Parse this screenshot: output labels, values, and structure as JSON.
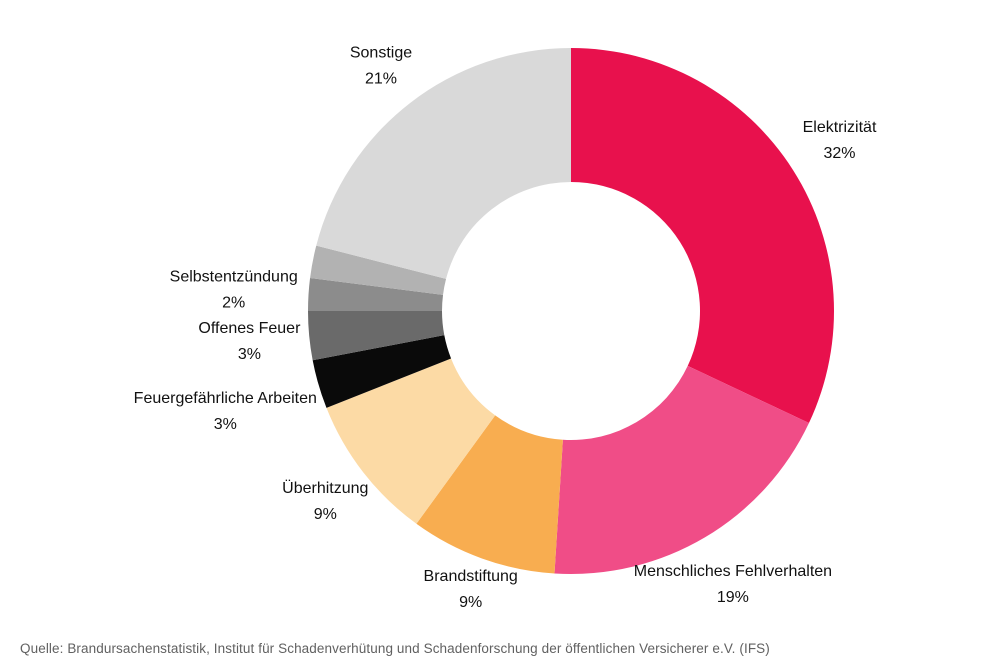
{
  "chart_data": {
    "type": "pie",
    "variant": "donut",
    "title": "",
    "unit": "%",
    "direction": "clockwise",
    "start_angle_deg": 0,
    "donut_hole_ratio": 0.49,
    "legend": "none",
    "labels_outside": true,
    "slices": [
      {
        "id": "elektrizitaet",
        "label": "Elektrizität",
        "value": 32,
        "pct_label": "32%",
        "color": "#E8114D",
        "show_label": true,
        "label_radius": 318
      },
      {
        "id": "menschliches-fehlverhalten",
        "label": "Menschliches Fehlverhalten",
        "value": 19,
        "pct_label": "19%",
        "color": "#F04D87",
        "show_label": true,
        "label_radius": 318
      },
      {
        "id": "brandstiftung",
        "label": "Brandstiftung",
        "value": 9,
        "pct_label": "9%",
        "color": "#F8AD50",
        "show_label": true,
        "label_radius": 296
      },
      {
        "id": "ueberhitzung",
        "label": "Überhitzung",
        "value": 9,
        "pct_label": "9%",
        "color": "#FCDAA5",
        "show_label": true,
        "label_radius": 311
      },
      {
        "id": "feuergefaehrliche-arbeiten",
        "label": "Feuergefährliche Arbeiten",
        "value": 3,
        "pct_label": "3%",
        "color": "#0A0A0A",
        "show_label": true,
        "label_radius": 360
      },
      {
        "id": "offenes-feuer",
        "label": "Offenes Feuer",
        "value": 3,
        "pct_label": "3%",
        "color": "#6A6A6A",
        "show_label": true,
        "label_radius": 323
      },
      {
        "id": "selbstentzuendung",
        "label": "Selbstentzündung",
        "value": 2,
        "pct_label": "2%",
        "color": "#8C8C8C",
        "show_label": true,
        "label_radius": 338
      },
      {
        "id": "unlabeled-gray",
        "label": "",
        "value": 2,
        "pct_label": "",
        "color": "#B2B2B2",
        "show_label": false,
        "label_radius": 0
      },
      {
        "id": "sonstige",
        "label": "Sonstige",
        "value": 21,
        "pct_label": "21%",
        "color": "#D9D9D9",
        "show_label": true,
        "label_radius": 310
      }
    ]
  },
  "source": {
    "text": "Quelle: Brandursachenstatistik, Institut für Schadenverhütung und Schadenforschung der öffentlichen Versicherer e.V. (IFS)"
  },
  "colors": {
    "background": "#FFFFFF",
    "label_text": "#111111",
    "source_text": "#616161"
  }
}
